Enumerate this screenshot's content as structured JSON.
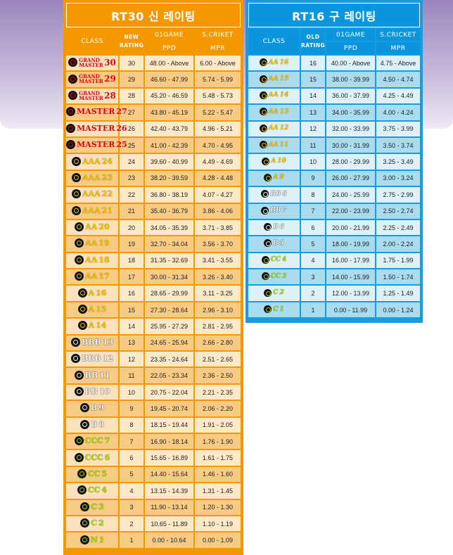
{
  "left": {
    "title": "RT30 신 레이팅",
    "headers": {
      "class": "CLASS",
      "rating": "NEW RATING",
      "game01": "01GAME",
      "cricket": "S.CRIKET",
      "ppd": "PPD",
      "mpr": "MPR"
    },
    "accent": "#f39800",
    "rows": [
      {
        "label": "GRAND MASTER",
        "num": "30",
        "tier": "red",
        "gm": true,
        "rating": "30",
        "ppd": "48.00 - Above",
        "mpr": "6.00 - Above"
      },
      {
        "label": "GRAND MASTER",
        "num": "29",
        "tier": "red",
        "gm": true,
        "rating": "29",
        "ppd": "46.60 - 47.99",
        "mpr": "5.74 - 5.99"
      },
      {
        "label": "GRAND MASTER",
        "num": "28",
        "tier": "red",
        "gm": true,
        "rating": "28",
        "ppd": "45.20 - 46.59",
        "mpr": "5.48 - 5.73"
      },
      {
        "label": "MASTER",
        "num": "27",
        "tier": "red",
        "rating": "27",
        "ppd": "43.80 - 45.19",
        "mpr": "5.22 - 5.47"
      },
      {
        "label": "MASTER",
        "num": "26",
        "tier": "red",
        "rating": "26",
        "ppd": "42.40 - 43.79",
        "mpr": "4.96 - 5.21"
      },
      {
        "label": "MASTER",
        "num": "25",
        "tier": "red",
        "rating": "25",
        "ppd": "41.00 - 42.39",
        "mpr": "4.70 - 4.95"
      },
      {
        "label": "AAA",
        "num": "24",
        "tier": "yellow",
        "rating": "24",
        "ppd": "39.60 - 40.99",
        "mpr": "4.49 - 4.69"
      },
      {
        "label": "AAA",
        "num": "23",
        "tier": "yellow",
        "rating": "23",
        "ppd": "38.20 - 39.59",
        "mpr": "4.28 - 4.48"
      },
      {
        "label": "AAA",
        "num": "22",
        "tier": "yellow",
        "rating": "22",
        "ppd": "36.80 - 38.19",
        "mpr": "4.07 - 4.27"
      },
      {
        "label": "AAA",
        "num": "21",
        "tier": "yellow",
        "rating": "21",
        "ppd": "35.40 - 36.79",
        "mpr": "3.86 - 4.06"
      },
      {
        "label": "AA",
        "num": "20",
        "tier": "yellow",
        "rating": "20",
        "ppd": "34.05 - 35.39",
        "mpr": "3.71 - 3.85"
      },
      {
        "label": "AA",
        "num": "19",
        "tier": "yellow",
        "rating": "19",
        "ppd": "32.70 - 34.04",
        "mpr": "3.56 - 3.70"
      },
      {
        "label": "AA",
        "num": "18",
        "tier": "yellow",
        "rating": "18",
        "ppd": "31.35 - 32.69",
        "mpr": "3.41 - 3.55"
      },
      {
        "label": "AA",
        "num": "17",
        "tier": "yellow",
        "rating": "17",
        "ppd": "30.00 - 31.34",
        "mpr": "3.26 - 3.40"
      },
      {
        "label": "A",
        "num": "16",
        "tier": "yellow",
        "rating": "16",
        "ppd": "28.65 - 29.99",
        "mpr": "3.11 - 3.25"
      },
      {
        "label": "A",
        "num": "15",
        "tier": "yellow",
        "rating": "15",
        "ppd": "27.30 - 28.64",
        "mpr": "2.96 - 3.10"
      },
      {
        "label": "A",
        "num": "14",
        "tier": "yellow",
        "rating": "14",
        "ppd": "25.95 - 27.29",
        "mpr": "2.81 - 2.95"
      },
      {
        "label": "BBB",
        "num": "13",
        "tier": "white",
        "rating": "13",
        "ppd": "24.65 - 25.94",
        "mpr": "2.66 - 2.80"
      },
      {
        "label": "BBB",
        "num": "12",
        "tier": "white",
        "rating": "12",
        "ppd": "23.35 - 24.64",
        "mpr": "2.51 - 2.65"
      },
      {
        "label": "BB",
        "num": "11",
        "tier": "white",
        "rating": "11",
        "ppd": "22.05 - 23.34",
        "mpr": "2.36 - 2.50"
      },
      {
        "label": "BB",
        "num": "10",
        "tier": "white",
        "rating": "10",
        "ppd": "20.75 - 22.04",
        "mpr": "2.21 - 2.35"
      },
      {
        "label": "B",
        "num": "9",
        "tier": "white",
        "rating": "9",
        "ppd": "19.45 - 20.74",
        "mpr": "2.06 - 2.20"
      },
      {
        "label": "B",
        "num": "8",
        "tier": "white",
        "rating": "8",
        "ppd": "18.15 - 19.44",
        "mpr": "1.91 - 2.05"
      },
      {
        "label": "CCC",
        "num": "7",
        "tier": "green",
        "rating": "7",
        "ppd": "16.90 - 18.14",
        "mpr": "1.76 - 1.90"
      },
      {
        "label": "CCC",
        "num": "6",
        "tier": "green",
        "rating": "6",
        "ppd": "15.65 - 16.89",
        "mpr": "1.61 - 1.75"
      },
      {
        "label": "CC",
        "num": "5",
        "tier": "green",
        "rating": "5",
        "ppd": "14.40 - 15.64",
        "mpr": "1.46 - 1.60"
      },
      {
        "label": "CC",
        "num": "4",
        "tier": "green",
        "rating": "4",
        "ppd": "13.15 - 14.39",
        "mpr": "1.31 - 1.45"
      },
      {
        "label": "C",
        "num": "3",
        "tier": "green",
        "rating": "3",
        "ppd": "11.90 - 13.14",
        "mpr": "1.20 - 1.30"
      },
      {
        "label": "C",
        "num": "2",
        "tier": "green",
        "rating": "2",
        "ppd": "10.65 - 11.89",
        "mpr": "1.10 - 1.19"
      },
      {
        "label": "N",
        "num": "1",
        "tier": "green",
        "rating": "1",
        "ppd": "0.00 - 10.64",
        "mpr": "0.00 - 1.09"
      }
    ]
  },
  "right": {
    "title": "RT16 구 레이팅",
    "headers": {
      "class": "CLASS",
      "rating": "OLD RATING",
      "game01": "01GAME",
      "cricket": "S.CRICKET",
      "ppd": "PPD",
      "mpr": "MPR"
    },
    "accent": "#1a9be0",
    "rows": [
      {
        "label": "AA",
        "num": "16",
        "tier": "yellow",
        "rating": "16",
        "ppd": "40.00 - Above",
        "mpr": "4.75 - Above"
      },
      {
        "label": "AA",
        "num": "15",
        "tier": "yellow",
        "rating": "15",
        "ppd": "38.00 - 39.99",
        "mpr": "4.50 - 4.74"
      },
      {
        "label": "AA",
        "num": "14",
        "tier": "yellow",
        "rating": "14",
        "ppd": "36.00 - 37.99",
        "mpr": "4.25 - 4.49"
      },
      {
        "label": "AA",
        "num": "13",
        "tier": "yellow",
        "rating": "13",
        "ppd": "34.00 - 35.99",
        "mpr": "4.00 - 4.24"
      },
      {
        "label": "AA",
        "num": "12",
        "tier": "yellow",
        "rating": "12",
        "ppd": "32.00 - 33.99",
        "mpr": "3.75 - 3.99"
      },
      {
        "label": "AA",
        "num": "11",
        "tier": "yellow",
        "rating": "11",
        "ppd": "30.00 - 31.99",
        "mpr": "3.50 - 3.74"
      },
      {
        "label": "A",
        "num": "10",
        "tier": "yellow",
        "rating": "10",
        "ppd": "28.00 - 29.99",
        "mpr": "3.25 - 3.49"
      },
      {
        "label": "A",
        "num": "9",
        "tier": "yellow",
        "rating": "9",
        "ppd": "26.00 - 27.99",
        "mpr": "3.00 - 3.24"
      },
      {
        "label": "BB",
        "num": "8",
        "tier": "white",
        "rating": "8",
        "ppd": "24.00 - 25.99",
        "mpr": "2.75 - 2.99"
      },
      {
        "label": "BB",
        "num": "7",
        "tier": "white",
        "rating": "7",
        "ppd": "22.00 - 23.99",
        "mpr": "2.50 - 2.74"
      },
      {
        "label": "B",
        "num": "6",
        "tier": "white",
        "rating": "6",
        "ppd": "20.00 - 21.99",
        "mpr": "2.25 - 2.49"
      },
      {
        "label": "B",
        "num": "5",
        "tier": "white",
        "rating": "5",
        "ppd": "18.00 - 19.99",
        "mpr": "2.00 - 2.24"
      },
      {
        "label": "CC",
        "num": "4",
        "tier": "green",
        "rating": "4",
        "ppd": "16.00 - 17.99",
        "mpr": "1.75 - 1.99"
      },
      {
        "label": "CC",
        "num": "3",
        "tier": "green",
        "rating": "3",
        "ppd": "14.00 - 15.99",
        "mpr": "1.50 - 1.74"
      },
      {
        "label": "C",
        "num": "2",
        "tier": "green",
        "rating": "2",
        "ppd": "12.00 - 13.99",
        "mpr": "1.25 - 1.49"
      },
      {
        "label": "C",
        "num": "1",
        "tier": "green",
        "rating": "1",
        "ppd": "0.00 - 11.99",
        "mpr": "0.00 - 1.24"
      }
    ]
  }
}
